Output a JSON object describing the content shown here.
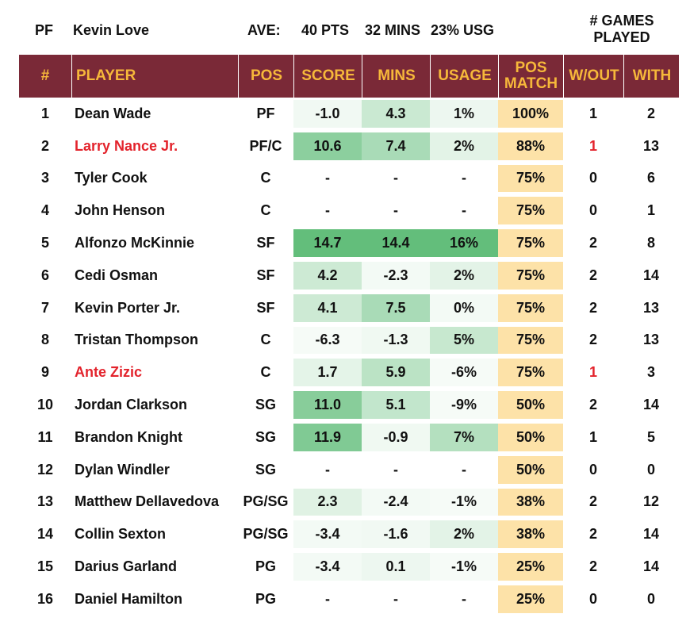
{
  "summary": {
    "position": "PF",
    "player": "Kevin Love",
    "ave_label": "AVE:",
    "pts": "40 PTS",
    "mins": "32 MINS",
    "usg": "23% USG",
    "games_played_header": "# GAMES\nPLAYED"
  },
  "columns": {
    "num": "#",
    "player": "PLAYER",
    "pos": "POS",
    "score": "SCORE",
    "mins": "MINS",
    "usage": "USAGE",
    "pos_match": "POS MATCH",
    "wout": "W/OUT",
    "with": "WITH"
  },
  "colors": {
    "header_bg": "#7a2937",
    "header_text": "#f6b83a",
    "highlight_red": "#e3232c",
    "pos_match_bg": "#fde2a8",
    "heat_green": "#63be7b"
  },
  "rows": [
    {
      "num": "1",
      "player": "Dean Wade",
      "pos": "PF",
      "score": "-1.0",
      "mins": "4.3",
      "usage": "1%",
      "pos_match": "100%",
      "wout": "1",
      "with": "2",
      "highlight": false,
      "heat": {
        "score": 0.03,
        "mins": 0.3,
        "usage": 0.06
      }
    },
    {
      "num": "2",
      "player": "Larry Nance Jr.",
      "pos": "PF/C",
      "score": "10.6",
      "mins": "7.4",
      "usage": "2%",
      "pos_match": "88%",
      "wout": "1",
      "with": "13",
      "highlight": true,
      "heat": {
        "score": 0.72,
        "mins": 0.52,
        "usage": 0.13
      }
    },
    {
      "num": "3",
      "player": "Tyler Cook",
      "pos": "C",
      "score": "-",
      "mins": "-",
      "usage": "-",
      "pos_match": "75%",
      "wout": "0",
      "with": "6",
      "highlight": false,
      "heat": {
        "score": 0,
        "mins": 0,
        "usage": 0
      }
    },
    {
      "num": "4",
      "player": "John Henson",
      "pos": "C",
      "score": "-",
      "mins": "-",
      "usage": "-",
      "pos_match": "75%",
      "wout": "0",
      "with": "1",
      "highlight": false,
      "heat": {
        "score": 0,
        "mins": 0,
        "usage": 0
      }
    },
    {
      "num": "5",
      "player": "Alfonzo McKinnie",
      "pos": "SF",
      "score": "14.7",
      "mins": "14.4",
      "usage": "16%",
      "pos_match": "75%",
      "wout": "2",
      "with": "8",
      "highlight": false,
      "heat": {
        "score": 1.0,
        "mins": 1.0,
        "usage": 1.0
      }
    },
    {
      "num": "6",
      "player": "Cedi Osman",
      "pos": "SF",
      "score": "4.2",
      "mins": "-2.3",
      "usage": "2%",
      "pos_match": "75%",
      "wout": "2",
      "with": "14",
      "highlight": false,
      "heat": {
        "score": 0.28,
        "mins": 0.02,
        "usage": 0.13
      }
    },
    {
      "num": "7",
      "player": "Kevin Porter Jr.",
      "pos": "SF",
      "score": "4.1",
      "mins": "7.5",
      "usage": "0%",
      "pos_match": "75%",
      "wout": "2",
      "with": "13",
      "highlight": false,
      "heat": {
        "score": 0.28,
        "mins": 0.52,
        "usage": 0.02
      }
    },
    {
      "num": "8",
      "player": "Tristan Thompson",
      "pos": "C",
      "score": "-6.3",
      "mins": "-1.3",
      "usage": "5%",
      "pos_match": "75%",
      "wout": "2",
      "with": "13",
      "highlight": false,
      "heat": {
        "score": 0.0,
        "mins": 0.04,
        "usage": 0.32
      }
    },
    {
      "num": "9",
      "player": "Ante Zizic",
      "pos": "C",
      "score": "1.7",
      "mins": "5.9",
      "usage": "-6%",
      "pos_match": "75%",
      "wout": "1",
      "with": "3",
      "highlight": true,
      "heat": {
        "score": 0.12,
        "mins": 0.4,
        "usage": 0.0
      }
    },
    {
      "num": "10",
      "player": "Jordan Clarkson",
      "pos": "SG",
      "score": "11.0",
      "mins": "5.1",
      "usage": "-9%",
      "pos_match": "50%",
      "wout": "2",
      "with": "14",
      "highlight": false,
      "heat": {
        "score": 0.75,
        "mins": 0.35,
        "usage": 0.0
      }
    },
    {
      "num": "11",
      "player": "Brandon Knight",
      "pos": "SG",
      "score": "11.9",
      "mins": "-0.9",
      "usage": "7%",
      "pos_match": "50%",
      "wout": "1",
      "with": "5",
      "highlight": false,
      "heat": {
        "score": 0.8,
        "mins": 0.04,
        "usage": 0.45
      }
    },
    {
      "num": "12",
      "player": "Dylan Windler",
      "pos": "SG",
      "score": "-",
      "mins": "-",
      "usage": "-",
      "pos_match": "50%",
      "wout": "0",
      "with": "0",
      "highlight": false,
      "heat": {
        "score": 0,
        "mins": 0,
        "usage": 0
      }
    },
    {
      "num": "13",
      "player": "Matthew Dellavedova",
      "pos": "PG/SG",
      "score": "2.3",
      "mins": "-2.4",
      "usage": "-1%",
      "pos_match": "38%",
      "wout": "2",
      "with": "12",
      "highlight": false,
      "heat": {
        "score": 0.15,
        "mins": 0.02,
        "usage": 0.0
      }
    },
    {
      "num": "14",
      "player": "Collin Sexton",
      "pos": "PG/SG",
      "score": "-3.4",
      "mins": "-1.6",
      "usage": "2%",
      "pos_match": "38%",
      "wout": "2",
      "with": "14",
      "highlight": false,
      "heat": {
        "score": 0.02,
        "mins": 0.03,
        "usage": 0.13
      }
    },
    {
      "num": "15",
      "player": "Darius Garland",
      "pos": "PG",
      "score": "-3.4",
      "mins": "0.1",
      "usage": "-1%",
      "pos_match": "25%",
      "wout": "2",
      "with": "14",
      "highlight": false,
      "heat": {
        "score": 0.02,
        "mins": 0.06,
        "usage": 0.0
      }
    },
    {
      "num": "16",
      "player": "Daniel Hamilton",
      "pos": "PG",
      "score": "-",
      "mins": "-",
      "usage": "-",
      "pos_match": "25%",
      "wout": "0",
      "with": "0",
      "highlight": false,
      "heat": {
        "score": 0,
        "mins": 0,
        "usage": 0
      }
    }
  ]
}
